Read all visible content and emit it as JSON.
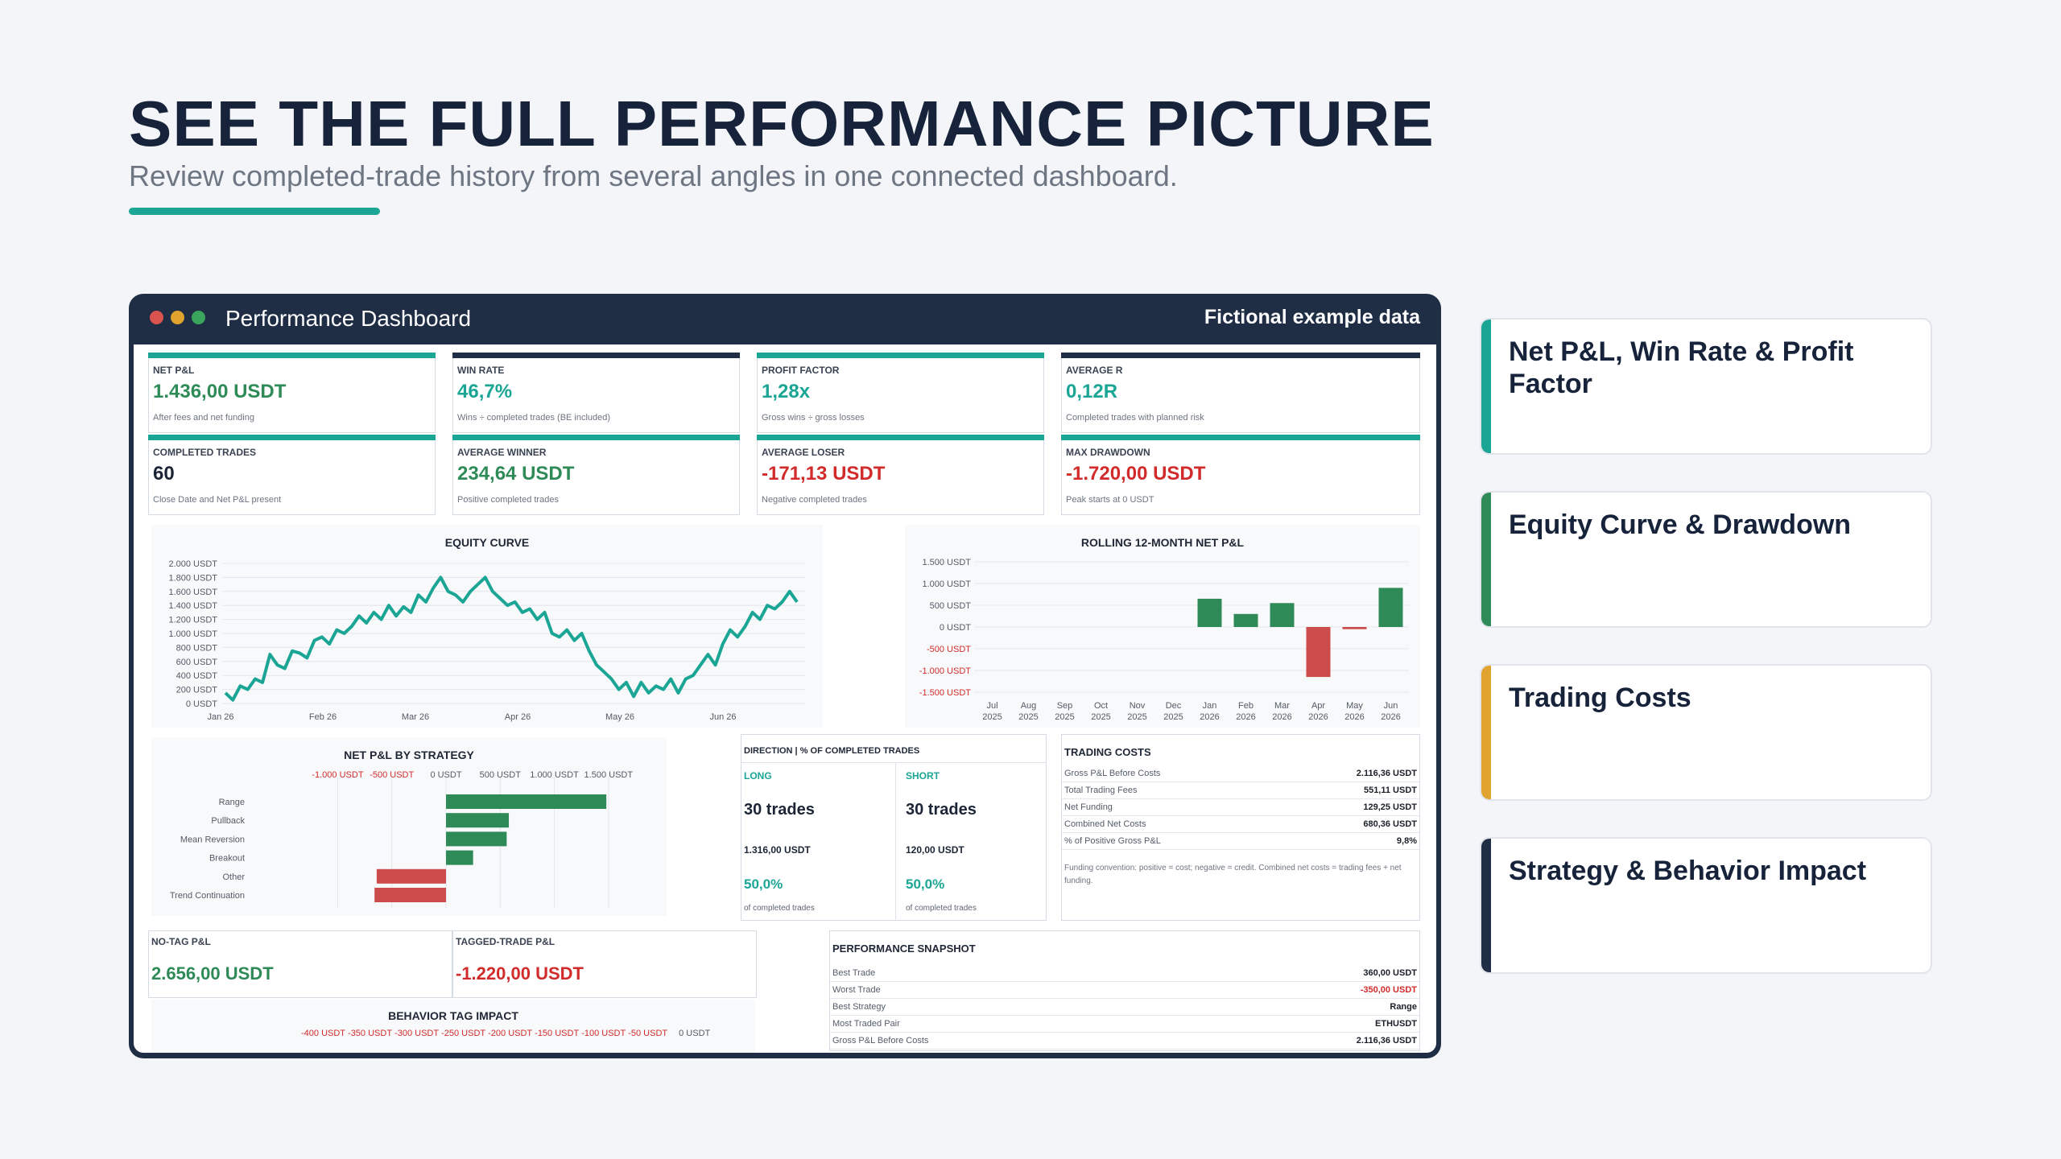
{
  "hero": {
    "title": "SEE THE FULL PERFORMANCE PICTURE",
    "subtitle": "Review completed-trade history from several angles in one connected dashboard."
  },
  "window": {
    "title": "Performance Dashboard",
    "badge": "Fictional example data",
    "controls": [
      "close",
      "minimize",
      "maximize"
    ]
  },
  "colors": {
    "teal": "#1aa595",
    "green": "#2e8b57",
    "red": "#cc4b4b",
    "navy": "#1f2d45",
    "amber": "#e0a42e"
  },
  "kpis": [
    {
      "label": "NET P&L",
      "value": "1.436,00 USDT",
      "note": "After fees and net funding",
      "tone": "green",
      "bar": "teal"
    },
    {
      "label": "WIN RATE",
      "value": "46,7%",
      "note": "Wins ÷ completed trades (BE included)",
      "tone": "teal",
      "bar": "navy"
    },
    {
      "label": "PROFIT FACTOR",
      "value": "1,28x",
      "note": "Gross wins ÷ gross losses",
      "tone": "teal",
      "bar": "teal"
    },
    {
      "label": "AVERAGE R",
      "value": "0,12R",
      "note": "Completed trades with planned risk",
      "tone": "teal",
      "bar": "navy"
    },
    {
      "label": "COMPLETED TRADES",
      "value": "60",
      "note": "Close Date and Net P&L present",
      "tone": "dark",
      "bar": "teal"
    },
    {
      "label": "AVERAGE WINNER",
      "value": "234,64 USDT",
      "note": "Positive completed trades",
      "tone": "green",
      "bar": "teal"
    },
    {
      "label": "AVERAGE LOSER",
      "value": "-171,13 USDT",
      "note": "Negative completed trades",
      "tone": "red",
      "bar": "teal"
    },
    {
      "label": "MAX DRAWDOWN",
      "value": "-1.720,00 USDT",
      "note": "Peak starts at 0 USDT",
      "tone": "red",
      "bar": "teal"
    }
  ],
  "chart_data": [
    {
      "type": "line",
      "title": "EQUITY CURVE",
      "yticks": [
        "0 USDT",
        "200 USDT",
        "400 USDT",
        "600 USDT",
        "800 USDT",
        "1.000 USDT",
        "1.200 USDT",
        "1.400 USDT",
        "1.600 USDT",
        "1.800 USDT",
        "2.000 USDT"
      ],
      "ylim": [
        0,
        2000
      ],
      "xticks": [
        "Jan 26",
        "Feb 26",
        "Mar 26",
        "Apr 26",
        "May 26",
        "Jun 26"
      ],
      "series": [
        {
          "values": [
            150,
            50,
            250,
            200,
            350,
            300,
            700,
            550,
            500,
            750,
            720,
            650,
            900,
            950,
            850,
            1050,
            1000,
            1100,
            1250,
            1150,
            1300,
            1200,
            1400,
            1250,
            1380,
            1300,
            1550,
            1450,
            1650,
            1800,
            1600,
            1550,
            1450,
            1600,
            1700,
            1800,
            1600,
            1500,
            1400,
            1450,
            1300,
            1350,
            1200,
            1300,
            1000,
            950,
            1050,
            900,
            1000,
            750,
            550,
            450,
            350,
            200,
            300,
            100,
            300,
            150,
            250,
            200,
            350,
            150,
            350,
            400,
            550,
            700,
            550,
            850,
            1050,
            950,
            1100,
            1300,
            1200,
            1400,
            1350,
            1450,
            1600,
            1450
          ]
        }
      ]
    },
    {
      "type": "bar",
      "title": "ROLLING 12-MONTH NET P&L",
      "categories": [
        "Jul 2025",
        "Aug 2025",
        "Sep 2025",
        "Oct 2025",
        "Nov 2025",
        "Dec 2025",
        "Jan 2026",
        "Feb 2026",
        "Mar 2026",
        "Apr 2026",
        "May 2026",
        "Jun 2026"
      ],
      "values": [
        0,
        0,
        0,
        0,
        0,
        0,
        650,
        300,
        550,
        -1150,
        -50,
        900
      ],
      "yticks": [
        "1.500 USDT",
        "1.000 USDT",
        "500 USDT",
        "0 USDT",
        "-500 USDT",
        "-1.000 USDT",
        "-1.500 USDT"
      ],
      "ylim": [
        -1500,
        1500
      ]
    },
    {
      "type": "bar",
      "title": "NET P&L BY STRATEGY",
      "categories": [
        "Range",
        "Pullback",
        "Mean Reversion",
        "Breakout",
        "Other",
        "Trend Continuation"
      ],
      "values": [
        1480,
        580,
        560,
        250,
        -640,
        -660
      ],
      "xticks": [
        "-1.000 USDT",
        "-500 USDT",
        "0 USDT",
        "500 USDT",
        "1.000 USDT",
        "1.500 USDT"
      ],
      "xlim": [
        -1100,
        1650
      ]
    }
  ],
  "direction": {
    "title": "DIRECTION | % OF COMPLETED TRADES",
    "long": {
      "label": "LONG",
      "trades": "30 trades",
      "pnl": "1.316,00 USDT",
      "pct": "50,0%",
      "note": "of completed trades"
    },
    "short": {
      "label": "SHORT",
      "trades": "30 trades",
      "pnl": "120,00 USDT",
      "pct": "50,0%",
      "note": "of completed trades"
    }
  },
  "trading_costs": {
    "title": "TRADING COSTS",
    "rows": [
      {
        "k": "Gross P&L Before Costs",
        "v": "2.116,36 USDT"
      },
      {
        "k": "Total Trading Fees",
        "v": "551,11 USDT"
      },
      {
        "k": "Net Funding",
        "v": "129,25 USDT"
      },
      {
        "k": "Combined Net Costs",
        "v": "680,36 USDT"
      },
      {
        "k": "% of Positive Gross P&L",
        "v": "9,8%"
      }
    ],
    "note": "Funding convention: positive = cost; negative = credit. Combined net costs = trading fees + net funding."
  },
  "tags": {
    "no_tag": {
      "label": "NO-TAG P&L",
      "value": "2.656,00 USDT"
    },
    "tagged": {
      "label": "TAGGED-TRADE P&L",
      "value": "-1.220,00 USDT"
    },
    "impact_title": "BEHAVIOR TAG IMPACT",
    "impact_ticks": [
      "-400 USDT",
      "-350 USDT",
      "-300 USDT",
      "-250 USDT",
      "-200 USDT",
      "-150 USDT",
      "-100 USDT",
      "-50 USDT",
      "0 USDT"
    ]
  },
  "snapshot": {
    "title": "PERFORMANCE SNAPSHOT",
    "rows": [
      {
        "k": "Best Trade",
        "v": "360,00 USDT",
        "tone": "dark"
      },
      {
        "k": "Worst Trade",
        "v": "-350,00 USDT",
        "tone": "red"
      },
      {
        "k": "Best Strategy",
        "v": "Range",
        "tone": "dark"
      },
      {
        "k": "Most Traded Pair",
        "v": "ETHUSDT",
        "tone": "dark"
      },
      {
        "k": "Gross P&L Before Costs",
        "v": "2.116,36 USDT",
        "tone": "dark"
      }
    ]
  },
  "feature_cards": [
    {
      "label": "Net P&L, Win Rate & Profit Factor",
      "accent": "teal"
    },
    {
      "label": "Equity Curve & Drawdown",
      "accent": "green"
    },
    {
      "label": "Trading Costs",
      "accent": "amber"
    },
    {
      "label": "Strategy & Behavior Impact",
      "accent": "navy"
    }
  ]
}
